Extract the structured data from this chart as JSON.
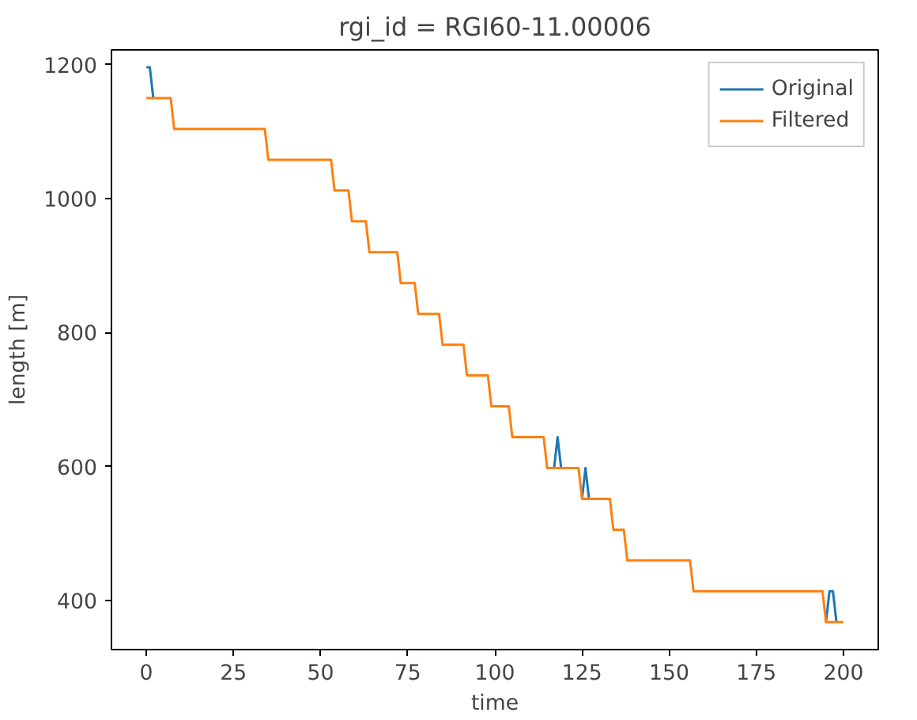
{
  "chart_data": {
    "type": "line",
    "title": "rgi_id = RGI60-11.00006",
    "xlabel": "time",
    "ylabel": "length [m]",
    "xlim": [
      -10,
      210
    ],
    "ylim": [
      327,
      1222
    ],
    "xticks": [
      0,
      25,
      50,
      75,
      100,
      125,
      150,
      175,
      200
    ],
    "yticks": [
      400,
      600,
      800,
      1000,
      1200
    ],
    "grid": false,
    "legend": "top right",
    "marker": "none",
    "line_style": "solid",
    "series": [
      {
        "name": "Original",
        "color": "#1f77b4",
        "x": [
          0,
          1,
          2,
          50,
          117,
          118,
          119,
          122,
          125,
          126,
          127,
          160,
          195,
          196,
          197,
          198
        ],
        "values": [
          1196,
          1196,
          1150,
          null,
          598,
          644,
          598,
          null,
          552,
          598,
          552,
          null,
          368,
          414,
          414,
          368
        ]
      },
      {
        "name": "Filtered",
        "color": "#ff7f0e",
        "x": [
          0,
          7,
          8,
          34,
          35,
          53,
          54,
          58,
          59,
          63,
          64,
          72,
          73,
          77,
          78,
          84,
          85,
          91,
          92,
          98,
          99,
          104,
          105,
          114,
          115,
          124,
          125,
          133,
          134,
          137,
          138,
          156,
          157,
          194,
          195,
          200
        ],
        "values": [
          1150,
          1150,
          1104,
          1104,
          1058,
          1058,
          1012,
          1012,
          966,
          966,
          920,
          920,
          874,
          874,
          828,
          828,
          782,
          782,
          736,
          736,
          690,
          690,
          644,
          644,
          598,
          598,
          552,
          552,
          506,
          506,
          460,
          460,
          414,
          414,
          368,
          368
        ]
      }
    ]
  }
}
